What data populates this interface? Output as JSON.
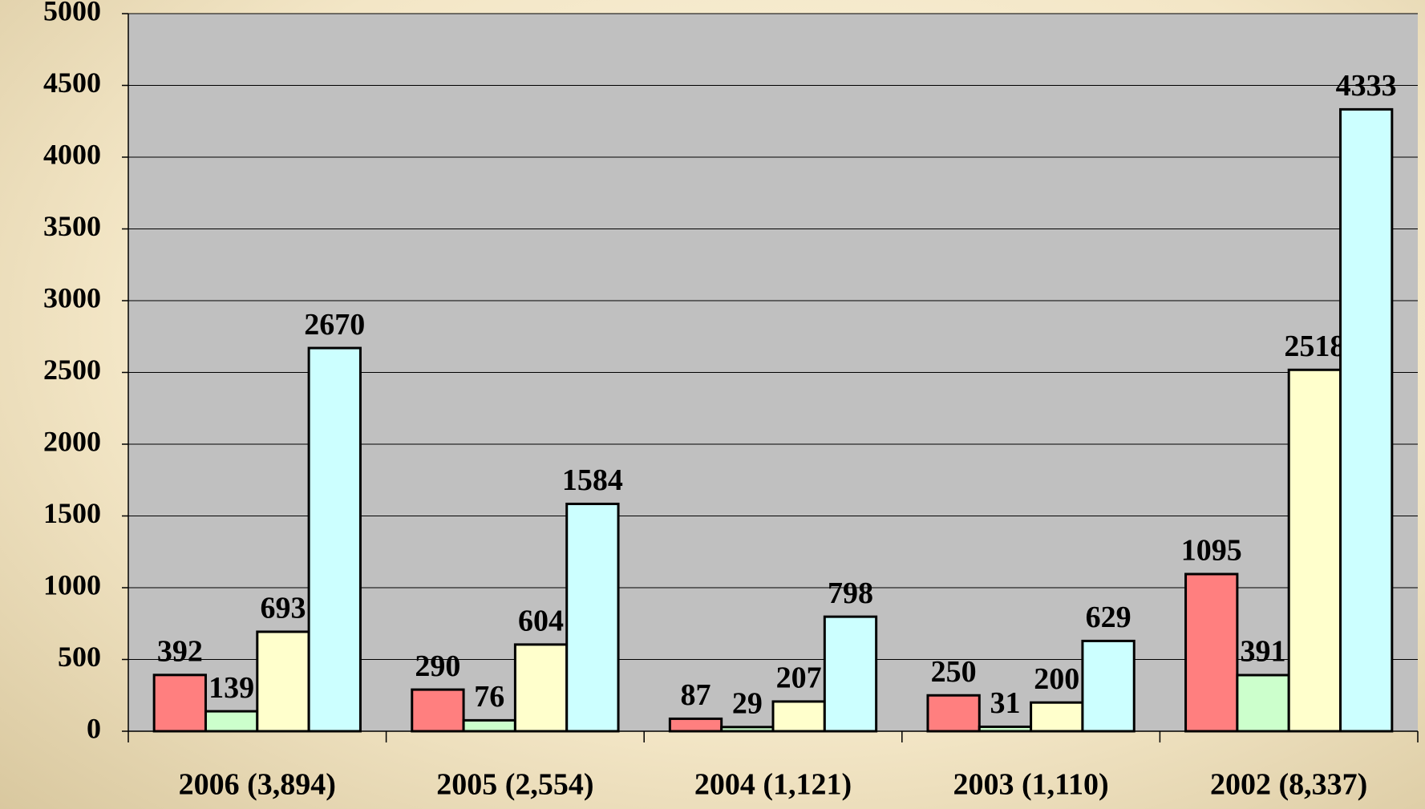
{
  "chart_data": {
    "type": "bar",
    "categories": [
      "2006 (3,894)",
      "2005 (2,554)",
      "2004 (1,121)",
      "2003 (1,110)",
      "2002 (8,337)"
    ],
    "series": [
      {
        "color": "#ff7f7f",
        "values": [
          392,
          290,
          87,
          250,
          1095
        ]
      },
      {
        "color": "#ccffcc",
        "values": [
          139,
          76,
          29,
          31,
          391
        ]
      },
      {
        "color": "#ffffcc",
        "values": [
          693,
          604,
          207,
          200,
          2518
        ]
      },
      {
        "color": "#ccffff",
        "values": [
          2670,
          1584,
          798,
          629,
          4333
        ]
      }
    ],
    "ylim": [
      0,
      5000
    ],
    "yticks": [
      0,
      500,
      1000,
      1500,
      2000,
      2500,
      3000,
      3500,
      4000,
      4500,
      5000
    ],
    "grid": true,
    "value_labels_shown": true
  }
}
